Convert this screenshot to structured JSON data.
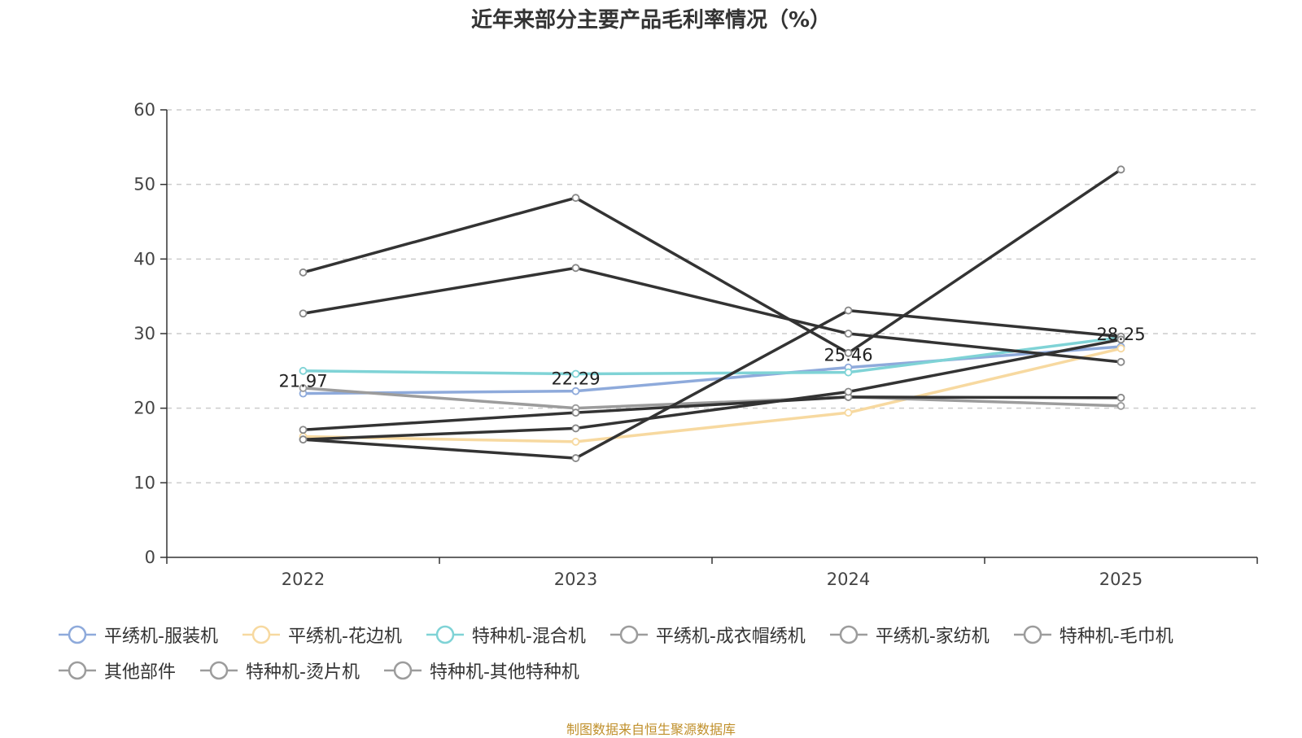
{
  "chart_data": {
    "type": "line",
    "title": "近年来部分主要产品毛利率情况（%）",
    "categories": [
      "2022",
      "2023",
      "2024",
      "2025"
    ],
    "ylim": [
      0,
      60
    ],
    "yticks": [
      "0",
      "10",
      "20",
      "30",
      "40",
      "50",
      "60"
    ],
    "grid": true,
    "legend_position": "bottom",
    "series": [
      {
        "name": "平绣机-服装机",
        "color": "#8eaadb",
        "values": [
          21.97,
          22.29,
          25.46,
          28.25
        ],
        "labels": [
          "21.97",
          "22.29",
          "25.46",
          "28.25"
        ]
      },
      {
        "name": "平绣机-花边机",
        "color": "#f7d9a0",
        "values": [
          16.2,
          15.5,
          19.4,
          28.0
        ]
      },
      {
        "name": "特种机-混合机",
        "color": "#7fd3d6",
        "values": [
          25.0,
          24.6,
          24.8,
          29.5
        ]
      },
      {
        "name": "平绣机-成衣帽绣机",
        "color": "#9c9c9c",
        "values": [
          22.7,
          20.0,
          21.5,
          20.3
        ]
      },
      {
        "name": "平绣机-家纺机",
        "color": "#333333",
        "values": [
          38.2,
          48.2,
          27.4,
          52.0
        ]
      },
      {
        "name": "特种机-毛巾机",
        "color": "#333333",
        "values": [
          32.7,
          38.8,
          30.0,
          26.2
        ]
      },
      {
        "name": "其他部件",
        "color": "#333333",
        "values": [
          17.1,
          19.4,
          21.5,
          21.4
        ]
      },
      {
        "name": "特种机-烫片机",
        "color": "#333333",
        "values": [
          15.8,
          13.3,
          33.1,
          29.6
        ]
      },
      {
        "name": "特种机-其他特种机",
        "color": "#333333",
        "values": [
          15.8,
          17.3,
          22.2,
          29.2
        ]
      }
    ],
    "legend_marker_colors": [
      "#8eaadb",
      "#f7d9a0",
      "#7fd3d6",
      "#9c9c9c",
      "#9c9c9c",
      "#9c9c9c",
      "#9c9c9c",
      "#9c9c9c",
      "#9c9c9c"
    ],
    "source_note": "制图数据来自恒生聚源数据库"
  }
}
